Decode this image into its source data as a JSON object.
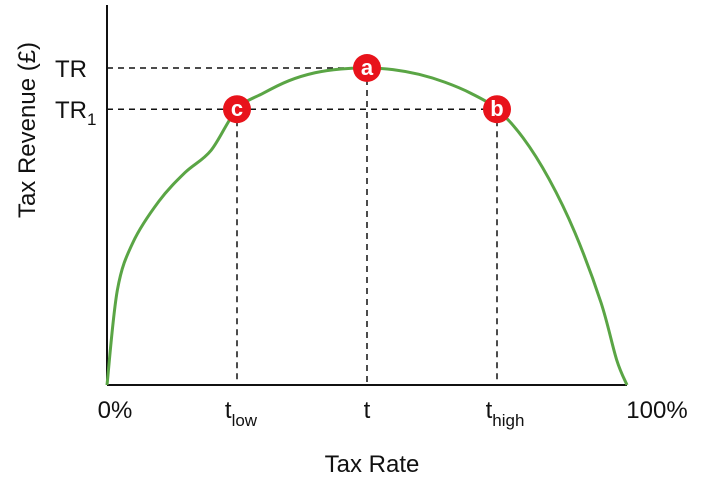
{
  "chart_data": {
    "type": "line",
    "xlabel": "Tax Rate",
    "ylabel": "Tax Revenue (£)",
    "x_ticks": [
      {
        "key": "zero",
        "main": "0%",
        "sub": ""
      },
      {
        "key": "low",
        "main": "t",
        "sub": "low"
      },
      {
        "key": "mid",
        "main": "t",
        "sub": ""
      },
      {
        "key": "high",
        "main": "t",
        "sub": "high"
      },
      {
        "key": "full",
        "main": "100%",
        "sub": ""
      }
    ],
    "y_ticks": [
      {
        "key": "tr",
        "main": "TR",
        "sub": ""
      },
      {
        "key": "tr1",
        "main": "TR",
        "sub": "1"
      }
    ],
    "points": [
      {
        "name": "a",
        "x": 50,
        "y": 100
      },
      {
        "name": "b",
        "x": 75,
        "y": 87
      },
      {
        "name": "c",
        "x": 25,
        "y": 87
      }
    ],
    "curve": {
      "x": [
        0,
        2,
        5,
        10,
        15,
        20,
        25,
        30,
        35,
        40,
        45,
        50,
        55,
        60,
        65,
        70,
        75,
        80,
        85,
        90,
        95,
        98,
        100
      ],
      "y": [
        0,
        30,
        45,
        58,
        67,
        74,
        87,
        92,
        96,
        98.5,
        99.7,
        100,
        99.5,
        98,
        95.5,
        92,
        87,
        78,
        65,
        48,
        26,
        8,
        0
      ]
    },
    "xlim": [
      0,
      100
    ],
    "ylim": [
      0,
      100
    ],
    "grid": false,
    "legend": false,
    "colors": {
      "curve": "#5aa545",
      "marker": "#e8131b",
      "axis": "#111111",
      "guide": "#111111"
    }
  }
}
